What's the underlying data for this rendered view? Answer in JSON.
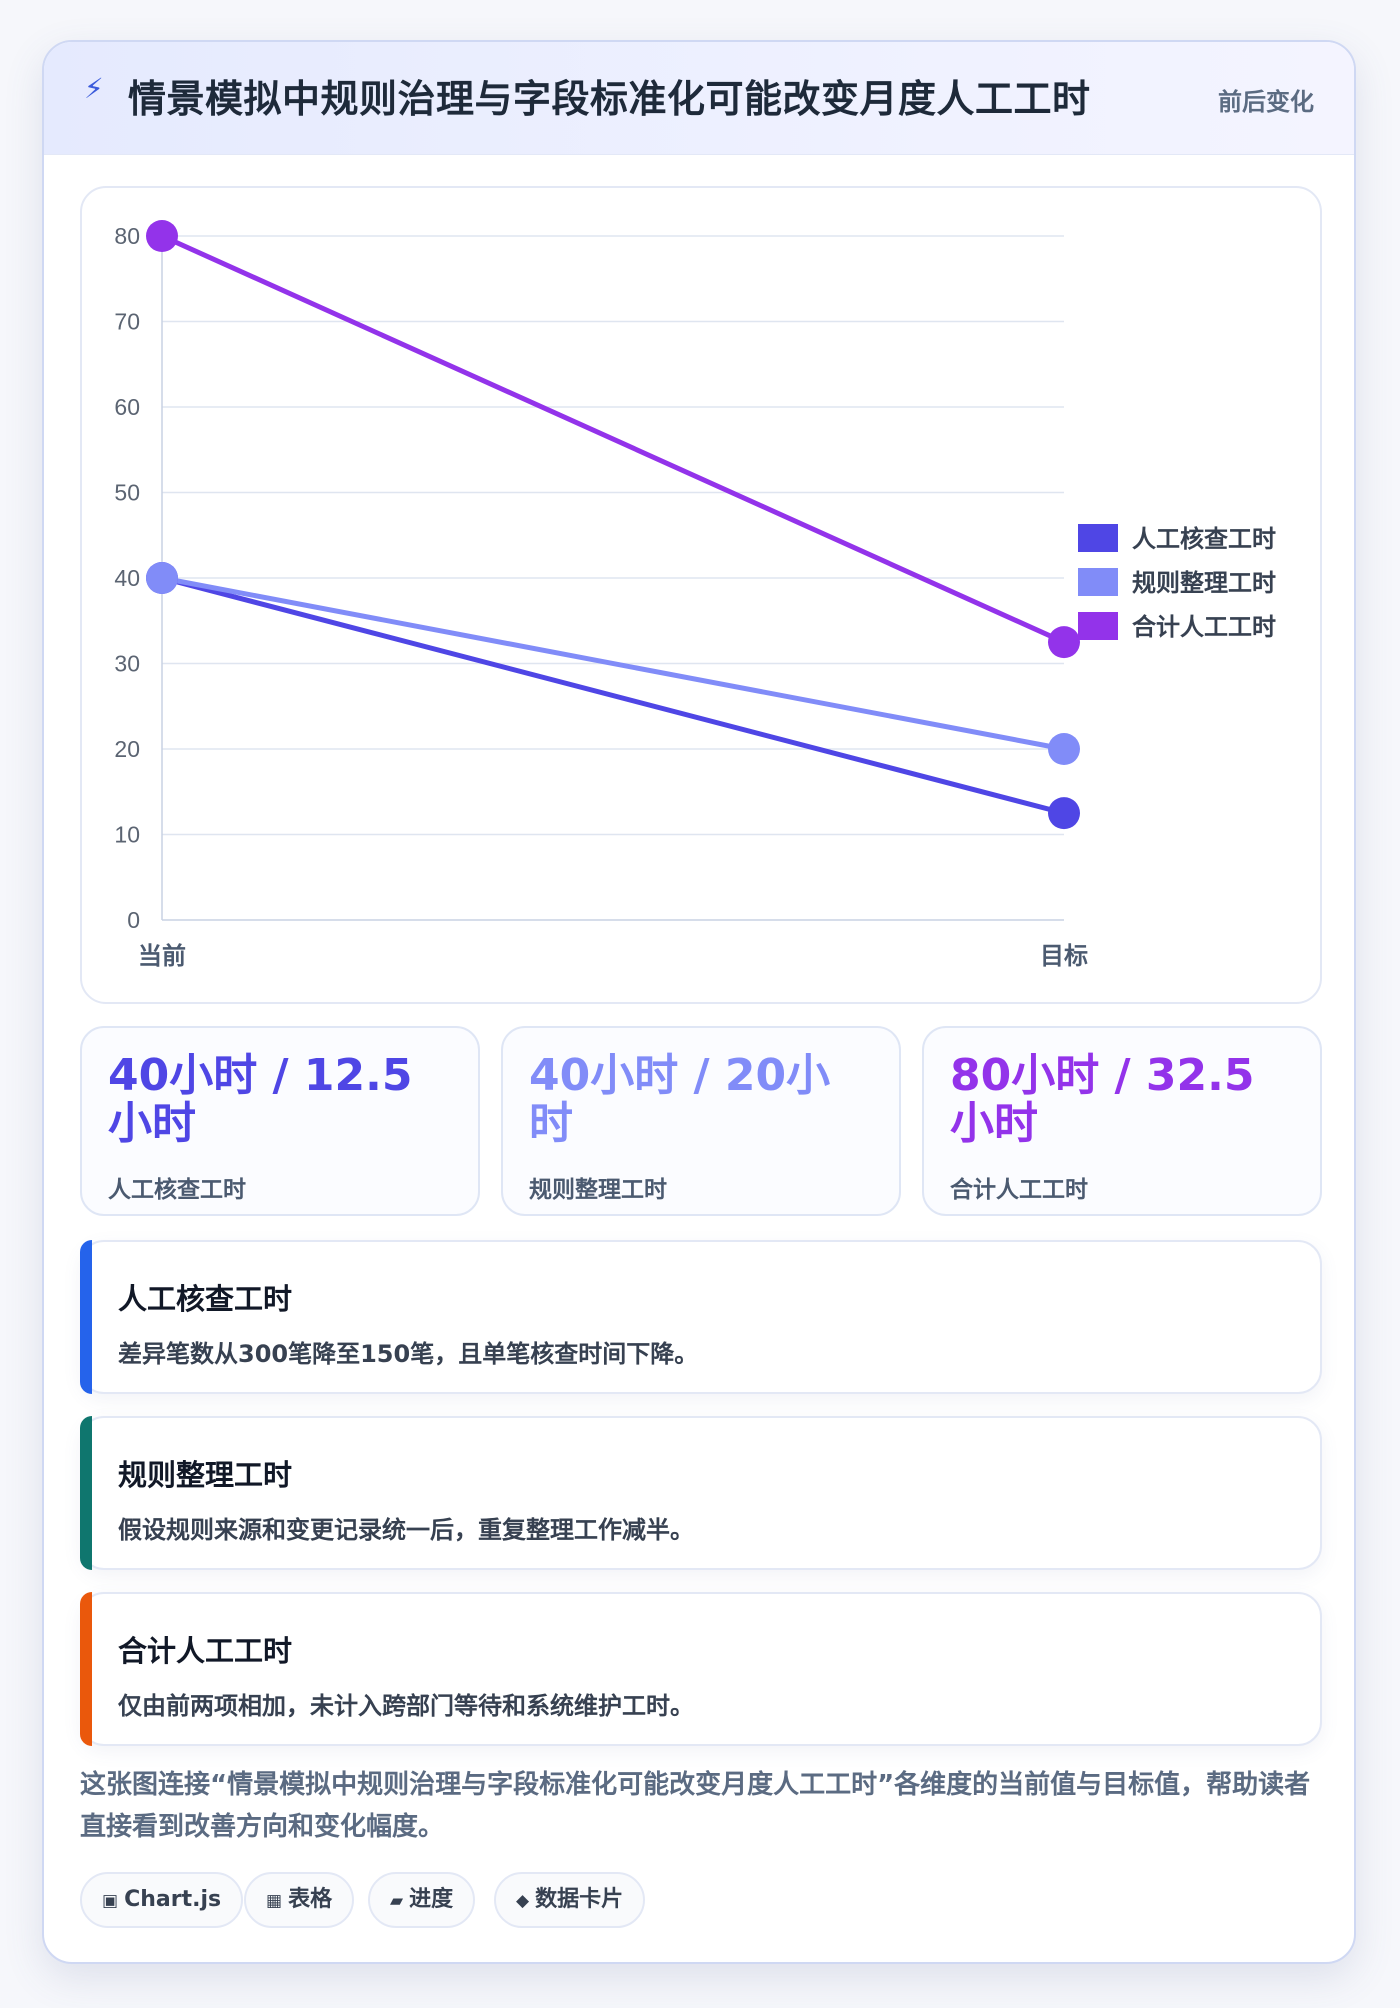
{
  "header": {
    "icon": "bolt-icon",
    "title": "情景模拟中规则治理与字段标准化可能改变月度人工工时",
    "tag": "前后变化"
  },
  "chart_data": {
    "type": "line",
    "x": [
      "当前",
      "目标"
    ],
    "ylim": [
      0,
      80
    ],
    "yticks": [
      0,
      10,
      20,
      30,
      40,
      50,
      60,
      70,
      80
    ],
    "grid": true,
    "legend_position": "right",
    "series": [
      {
        "name": "人工核查工时",
        "values": [
          40,
          12.5
        ],
        "color": "#4f46e5"
      },
      {
        "name": "规则整理工时",
        "values": [
          40,
          20
        ],
        "color": "#818cf8"
      },
      {
        "name": "合计人工工时",
        "values": [
          80,
          32.5
        ],
        "color": "#9333ea"
      }
    ]
  },
  "stats": [
    {
      "value": "40小时 / 12.5 小时",
      "label": "人工核查工时",
      "color": "#4f46e5"
    },
    {
      "value": "40小时 / 20小时",
      "label": "规则整理工时",
      "color": "#818cf8"
    },
    {
      "value": "80小时 / 32.5 小时",
      "label": "合计人工工时",
      "color": "#9333ea"
    }
  ],
  "notes": [
    {
      "title": "人工核查工时",
      "desc": "差异笔数从300笔降至150笔，且单笔核查时间下降。",
      "color": "#2563eb"
    },
    {
      "title": "规则整理工时",
      "desc": "假设规则来源和变更记录统一后，重复整理工作减半。",
      "color": "#0f766e"
    },
    {
      "title": "合计人工工时",
      "desc": "仅由前两项相加，未计入跨部门等待和系统维护工时。",
      "color": "#ea580c"
    }
  ],
  "description": "这张图连接“情景模拟中规则治理与字段标准化可能改变月度人工工时”各维度的当前值与目标值，帮助读者直接看到改善方向和变化幅度。",
  "chips": [
    {
      "icon": "▣",
      "label": "Chart.js"
    },
    {
      "icon": "▦",
      "label": "表格"
    },
    {
      "icon": "▰",
      "label": "进度"
    },
    {
      "icon": "◆",
      "label": "数据卡片"
    }
  ]
}
